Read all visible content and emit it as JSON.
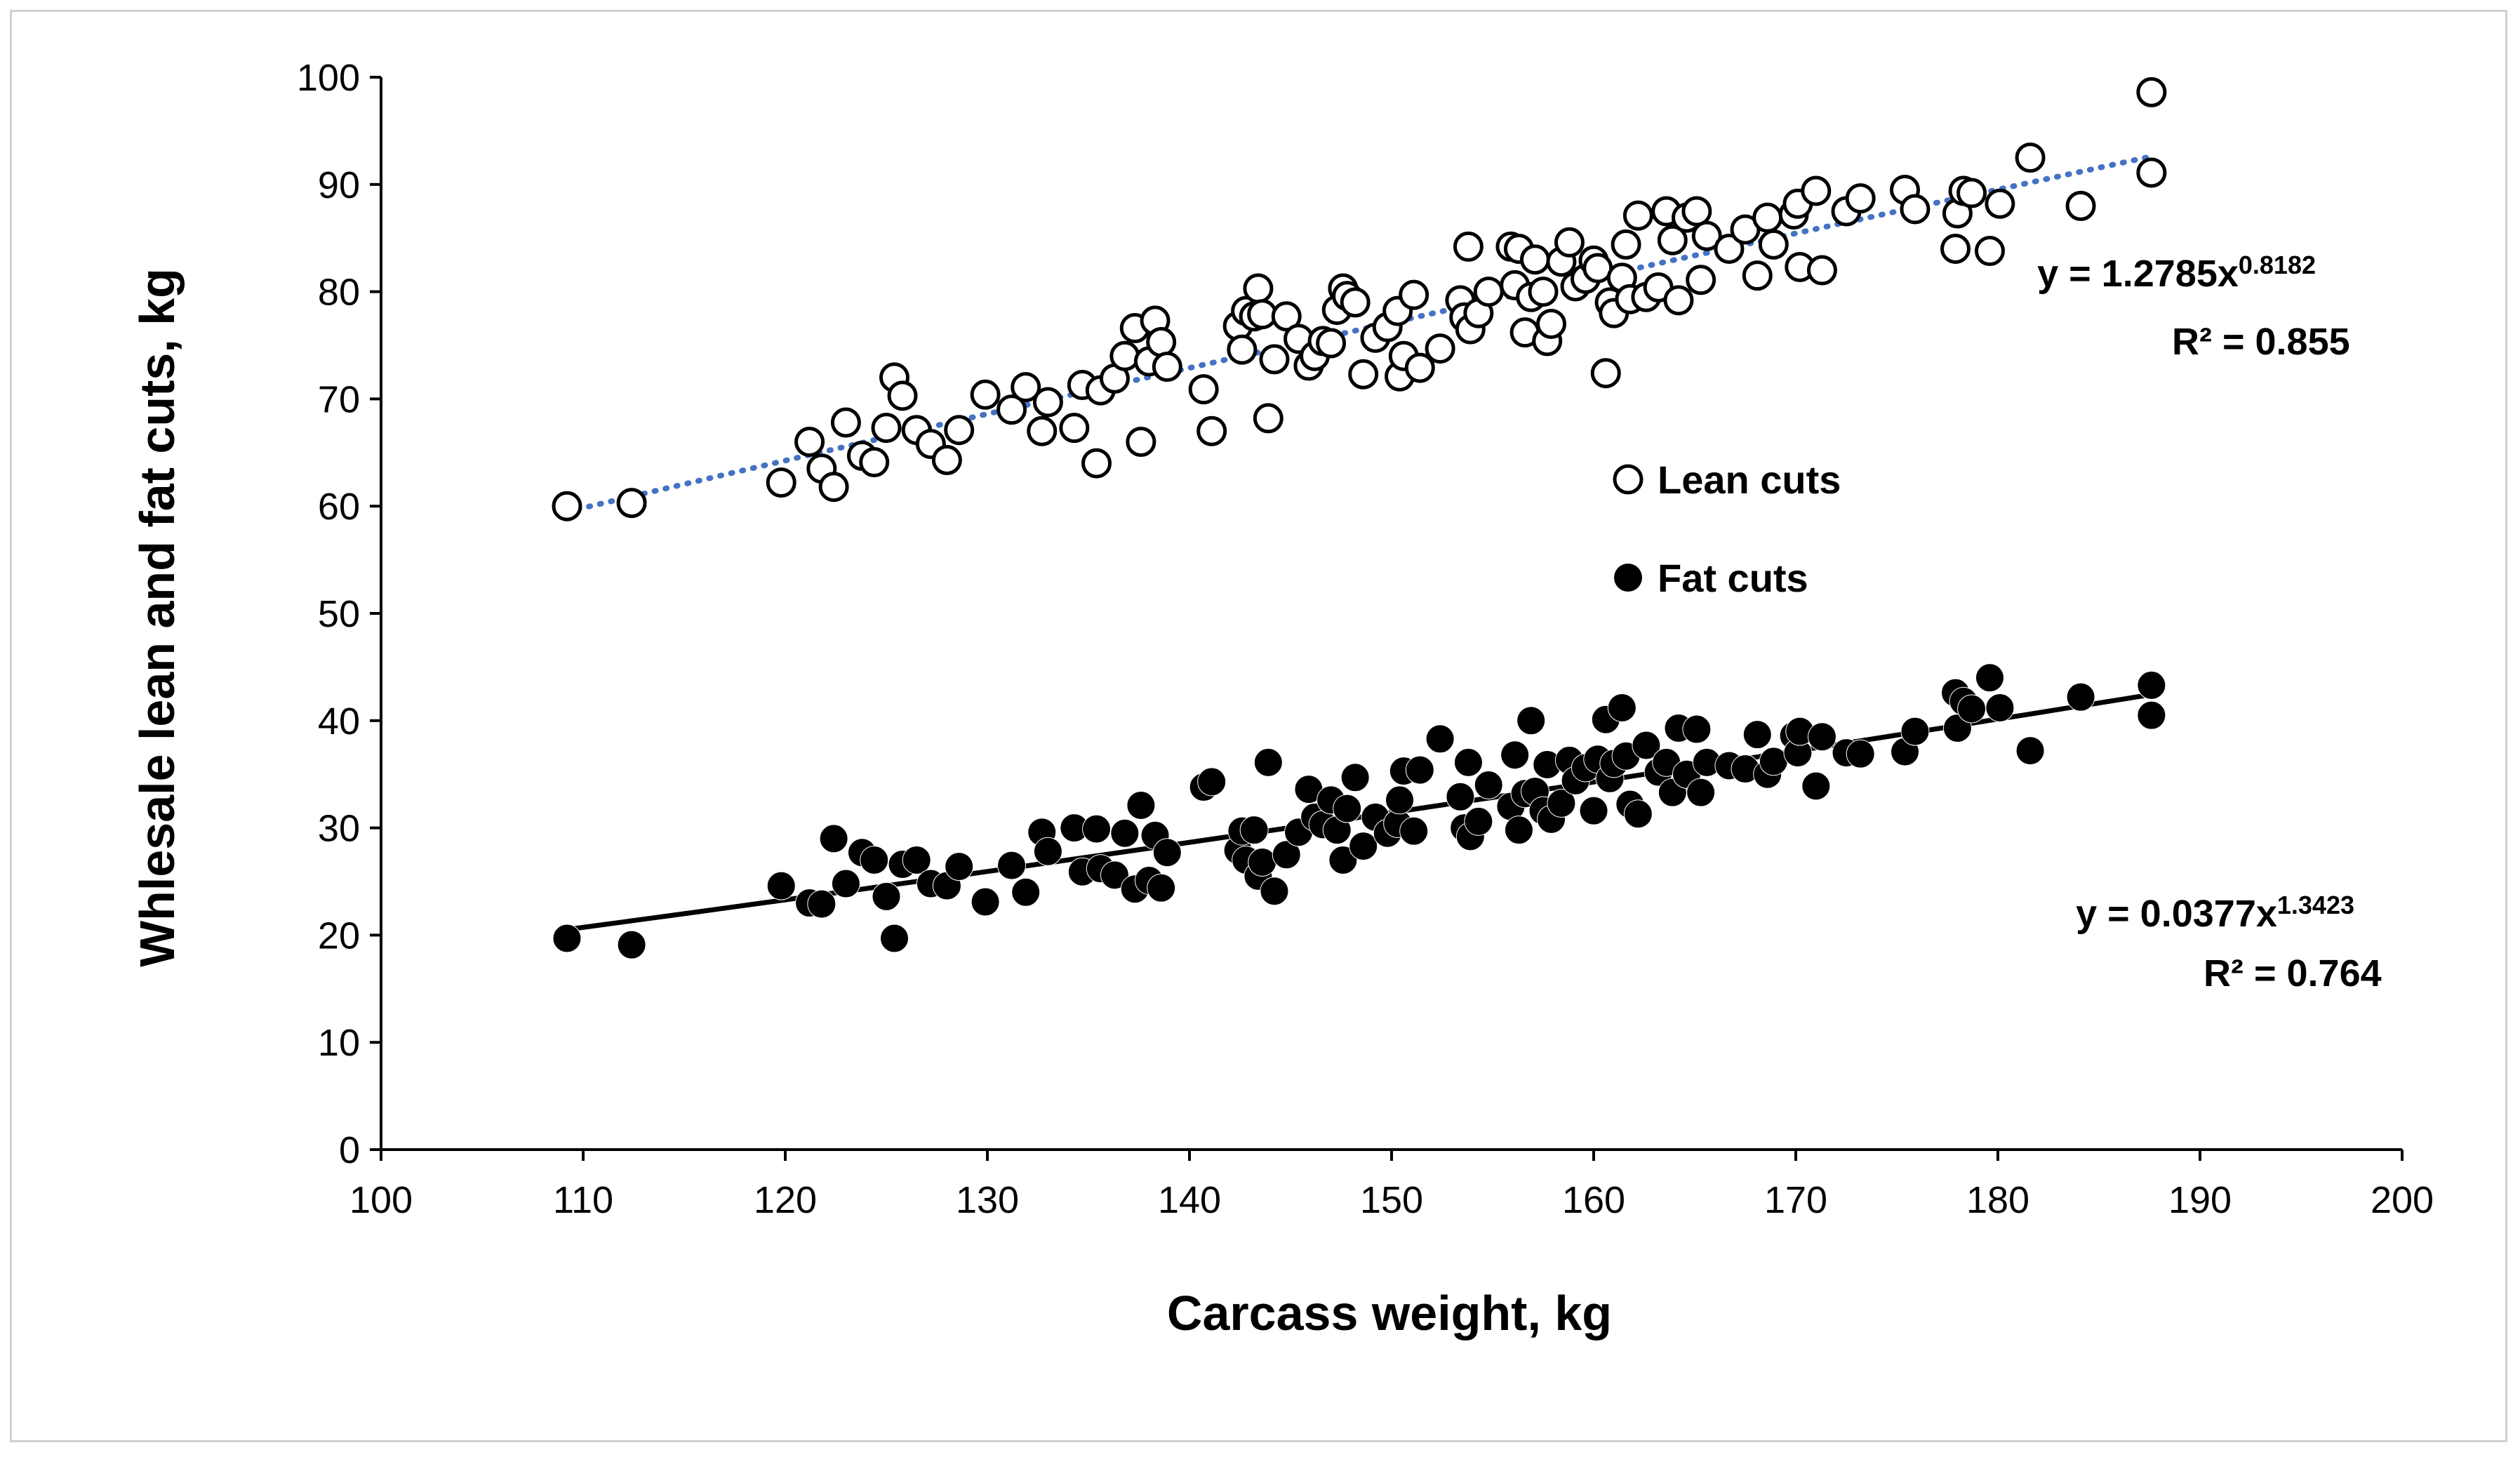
{
  "chart_data": {
    "type": "scatter",
    "title": "",
    "xlabel": "Carcass weight, kg",
    "ylabel": "Whlesale lean and fat cuts, kg",
    "xlim": [
      100,
      200
    ],
    "ylim": [
      0,
      100
    ],
    "xticks": [
      100,
      110,
      120,
      130,
      140,
      150,
      160,
      170,
      180,
      190,
      200
    ],
    "yticks": [
      0,
      10,
      20,
      30,
      40,
      50,
      60,
      70,
      80,
      90,
      100
    ],
    "grid": false,
    "legend_position": "center-right",
    "series": [
      {
        "name": "Lean cuts",
        "marker": "open-circle",
        "color": "#000000",
        "trendline": {
          "type": "power",
          "a": 1.2785,
          "b": 0.8182,
          "style": "dotted",
          "color": "#4472c4",
          "equation_prefix": "y = 1.2785x",
          "equation_exponent": "0.8182",
          "r2_label": "R² = 0.855"
        },
        "points": [
          [
            109.2,
            60.0
          ],
          [
            112.4,
            60.3
          ],
          [
            119.8,
            62.2
          ],
          [
            121.2,
            66.0
          ],
          [
            121.8,
            63.5
          ],
          [
            122.4,
            61.8
          ],
          [
            123.0,
            67.8
          ],
          [
            123.8,
            64.7
          ],
          [
            124.4,
            64.1
          ],
          [
            125.0,
            67.3
          ],
          [
            125.4,
            72.0
          ],
          [
            125.8,
            70.3
          ],
          [
            126.5,
            67.1
          ],
          [
            127.2,
            65.8
          ],
          [
            128.0,
            64.3
          ],
          [
            128.6,
            67.1
          ],
          [
            129.9,
            70.4
          ],
          [
            131.2,
            69.0
          ],
          [
            131.9,
            71.1
          ],
          [
            132.7,
            67.0
          ],
          [
            133.0,
            69.7
          ],
          [
            134.3,
            67.3
          ],
          [
            134.7,
            71.3
          ],
          [
            135.4,
            64.0
          ],
          [
            135.6,
            70.8
          ],
          [
            136.3,
            71.9
          ],
          [
            136.8,
            74.0
          ],
          [
            137.3,
            76.6
          ],
          [
            137.6,
            66.0
          ],
          [
            138.0,
            73.5
          ],
          [
            138.3,
            77.3
          ],
          [
            138.6,
            75.3
          ],
          [
            138.9,
            73.0
          ],
          [
            140.7,
            70.9
          ],
          [
            141.1,
            67.0
          ],
          [
            142.4,
            76.8
          ],
          [
            142.6,
            74.6
          ],
          [
            142.8,
            78.2
          ],
          [
            143.2,
            77.7
          ],
          [
            143.4,
            80.3
          ],
          [
            143.6,
            77.9
          ],
          [
            143.9,
            68.2
          ],
          [
            144.2,
            73.7
          ],
          [
            144.8,
            77.7
          ],
          [
            145.4,
            75.6
          ],
          [
            145.9,
            73.1
          ],
          [
            146.2,
            74.0
          ],
          [
            146.6,
            75.4
          ],
          [
            147.0,
            75.2
          ],
          [
            147.3,
            78.3
          ],
          [
            147.6,
            80.3
          ],
          [
            147.8,
            79.6
          ],
          [
            148.2,
            79.0
          ],
          [
            148.6,
            72.3
          ],
          [
            149.2,
            75.7
          ],
          [
            149.8,
            76.7
          ],
          [
            150.3,
            78.2
          ],
          [
            150.4,
            72.1
          ],
          [
            150.6,
            74.0
          ],
          [
            151.1,
            79.7
          ],
          [
            151.4,
            72.9
          ],
          [
            152.4,
            74.7
          ],
          [
            153.4,
            79.2
          ],
          [
            153.6,
            77.6
          ],
          [
            153.8,
            84.2
          ],
          [
            153.9,
            76.5
          ],
          [
            154.3,
            78.0
          ],
          [
            154.8,
            80.0
          ],
          [
            155.9,
            84.2
          ],
          [
            156.1,
            80.6
          ],
          [
            156.3,
            84.0
          ],
          [
            156.6,
            76.2
          ],
          [
            156.9,
            79.5
          ],
          [
            157.1,
            83.0
          ],
          [
            157.5,
            80.0
          ],
          [
            157.7,
            75.4
          ],
          [
            157.9,
            77.0
          ],
          [
            158.4,
            82.8
          ],
          [
            158.8,
            84.6
          ],
          [
            159.1,
            80.5
          ],
          [
            159.6,
            81.2
          ],
          [
            160.0,
            82.9
          ],
          [
            160.2,
            82.2
          ],
          [
            160.6,
            72.4
          ],
          [
            160.8,
            79.0
          ],
          [
            161.0,
            78.0
          ],
          [
            161.4,
            81.3
          ],
          [
            161.6,
            84.4
          ],
          [
            161.8,
            79.3
          ],
          [
            162.2,
            87.1
          ],
          [
            162.6,
            79.5
          ],
          [
            163.2,
            80.4
          ],
          [
            163.6,
            87.5
          ],
          [
            163.9,
            84.8
          ],
          [
            164.2,
            79.2
          ],
          [
            164.6,
            86.9
          ],
          [
            165.1,
            87.5
          ],
          [
            165.3,
            81.1
          ],
          [
            165.6,
            85.2
          ],
          [
            166.7,
            84.0
          ],
          [
            167.5,
            85.8
          ],
          [
            168.1,
            81.5
          ],
          [
            168.6,
            86.9
          ],
          [
            168.9,
            84.4
          ],
          [
            169.9,
            87.2
          ],
          [
            170.1,
            88.2
          ],
          [
            170.2,
            82.3
          ],
          [
            171.0,
            89.4
          ],
          [
            171.3,
            82.0
          ],
          [
            172.5,
            87.5
          ],
          [
            173.2,
            88.7
          ],
          [
            175.4,
            89.5
          ],
          [
            175.9,
            87.7
          ],
          [
            177.9,
            84.0
          ],
          [
            178.0,
            87.3
          ],
          [
            178.3,
            89.4
          ],
          [
            178.7,
            89.2
          ],
          [
            179.6,
            83.8
          ],
          [
            180.1,
            88.2
          ],
          [
            181.6,
            92.5
          ],
          [
            184.1,
            88.0
          ],
          [
            187.6,
            91.1
          ],
          [
            187.6,
            98.6
          ]
        ]
      },
      {
        "name": "Fat cuts",
        "marker": "filled-circle",
        "color": "#000000",
        "trendline": {
          "type": "power",
          "a": 0.0377,
          "b": 1.3423,
          "style": "solid",
          "color": "#000000",
          "equation_prefix": "y = 0.0377x",
          "equation_exponent": "1.3423",
          "r2_label": "R² = 0.764"
        },
        "points": [
          [
            109.2,
            19.7
          ],
          [
            112.4,
            19.1
          ],
          [
            119.8,
            24.6
          ],
          [
            121.2,
            23.0
          ],
          [
            121.8,
            22.9
          ],
          [
            122.4,
            29.0
          ],
          [
            123.0,
            24.8
          ],
          [
            123.8,
            27.7
          ],
          [
            124.4,
            27.0
          ],
          [
            125.0,
            23.6
          ],
          [
            125.4,
            19.7
          ],
          [
            125.8,
            26.6
          ],
          [
            126.5,
            27.0
          ],
          [
            127.2,
            24.8
          ],
          [
            128.0,
            24.6
          ],
          [
            128.6,
            26.4
          ],
          [
            129.9,
            23.1
          ],
          [
            131.2,
            26.5
          ],
          [
            131.9,
            24.0
          ],
          [
            132.7,
            29.6
          ],
          [
            133.0,
            27.8
          ],
          [
            134.3,
            30.0
          ],
          [
            134.7,
            25.9
          ],
          [
            135.4,
            29.9
          ],
          [
            135.6,
            26.2
          ],
          [
            136.3,
            25.6
          ],
          [
            136.8,
            29.5
          ],
          [
            137.3,
            24.3
          ],
          [
            137.6,
            32.1
          ],
          [
            138.0,
            25.1
          ],
          [
            138.3,
            29.3
          ],
          [
            138.6,
            24.4
          ],
          [
            138.9,
            27.7
          ],
          [
            140.7,
            33.8
          ],
          [
            141.1,
            34.3
          ],
          [
            142.4,
            27.9
          ],
          [
            142.6,
            29.7
          ],
          [
            142.8,
            27.0
          ],
          [
            143.2,
            29.8
          ],
          [
            143.4,
            25.5
          ],
          [
            143.6,
            26.8
          ],
          [
            143.9,
            36.1
          ],
          [
            144.2,
            24.1
          ],
          [
            144.8,
            27.5
          ],
          [
            145.4,
            29.6
          ],
          [
            145.9,
            33.6
          ],
          [
            146.2,
            31.0
          ],
          [
            146.6,
            30.3
          ],
          [
            147.0,
            32.6
          ],
          [
            147.3,
            29.8
          ],
          [
            147.6,
            27.0
          ],
          [
            147.8,
            31.8
          ],
          [
            148.2,
            34.7
          ],
          [
            148.6,
            28.3
          ],
          [
            149.2,
            31.0
          ],
          [
            149.8,
            29.5
          ],
          [
            150.3,
            30.4
          ],
          [
            150.4,
            32.6
          ],
          [
            150.6,
            35.3
          ],
          [
            151.1,
            29.7
          ],
          [
            151.4,
            35.4
          ],
          [
            152.4,
            38.3
          ],
          [
            153.4,
            32.9
          ],
          [
            153.6,
            30.0
          ],
          [
            153.8,
            36.1
          ],
          [
            153.9,
            29.2
          ],
          [
            154.3,
            30.6
          ],
          [
            154.8,
            34.0
          ],
          [
            155.9,
            32.0
          ],
          [
            156.1,
            36.8
          ],
          [
            156.3,
            29.8
          ],
          [
            156.6,
            33.2
          ],
          [
            156.9,
            40.0
          ],
          [
            157.1,
            33.4
          ],
          [
            157.5,
            31.6
          ],
          [
            157.7,
            35.9
          ],
          [
            157.9,
            30.8
          ],
          [
            158.4,
            32.3
          ],
          [
            158.8,
            36.3
          ],
          [
            159.1,
            34.4
          ],
          [
            159.6,
            35.6
          ],
          [
            160.0,
            31.6
          ],
          [
            160.2,
            36.4
          ],
          [
            160.6,
            40.1
          ],
          [
            160.8,
            34.6
          ],
          [
            161.0,
            36.0
          ],
          [
            161.4,
            41.2
          ],
          [
            161.6,
            36.7
          ],
          [
            161.8,
            32.2
          ],
          [
            162.2,
            31.3
          ],
          [
            162.6,
            37.7
          ],
          [
            163.2,
            35.2
          ],
          [
            163.6,
            36.1
          ],
          [
            163.9,
            33.3
          ],
          [
            164.2,
            39.3
          ],
          [
            164.6,
            35.0
          ],
          [
            165.1,
            39.2
          ],
          [
            165.3,
            33.3
          ],
          [
            165.6,
            36.1
          ],
          [
            166.7,
            35.8
          ],
          [
            167.5,
            35.5
          ],
          [
            168.1,
            38.7
          ],
          [
            168.6,
            35.0
          ],
          [
            168.9,
            36.2
          ],
          [
            169.9,
            38.6
          ],
          [
            170.1,
            37.0
          ],
          [
            170.2,
            39.0
          ],
          [
            171.0,
            33.9
          ],
          [
            171.3,
            38.5
          ],
          [
            172.5,
            37.0
          ],
          [
            173.2,
            36.9
          ],
          [
            175.4,
            37.1
          ],
          [
            175.9,
            39.0
          ],
          [
            177.9,
            42.6
          ],
          [
            178.0,
            39.3
          ],
          [
            178.3,
            41.8
          ],
          [
            178.7,
            41.1
          ],
          [
            179.6,
            44.0
          ],
          [
            180.1,
            41.2
          ],
          [
            181.6,
            37.2
          ],
          [
            184.1,
            42.2
          ],
          [
            187.6,
            40.5
          ],
          [
            187.6,
            43.3
          ]
        ]
      }
    ]
  }
}
